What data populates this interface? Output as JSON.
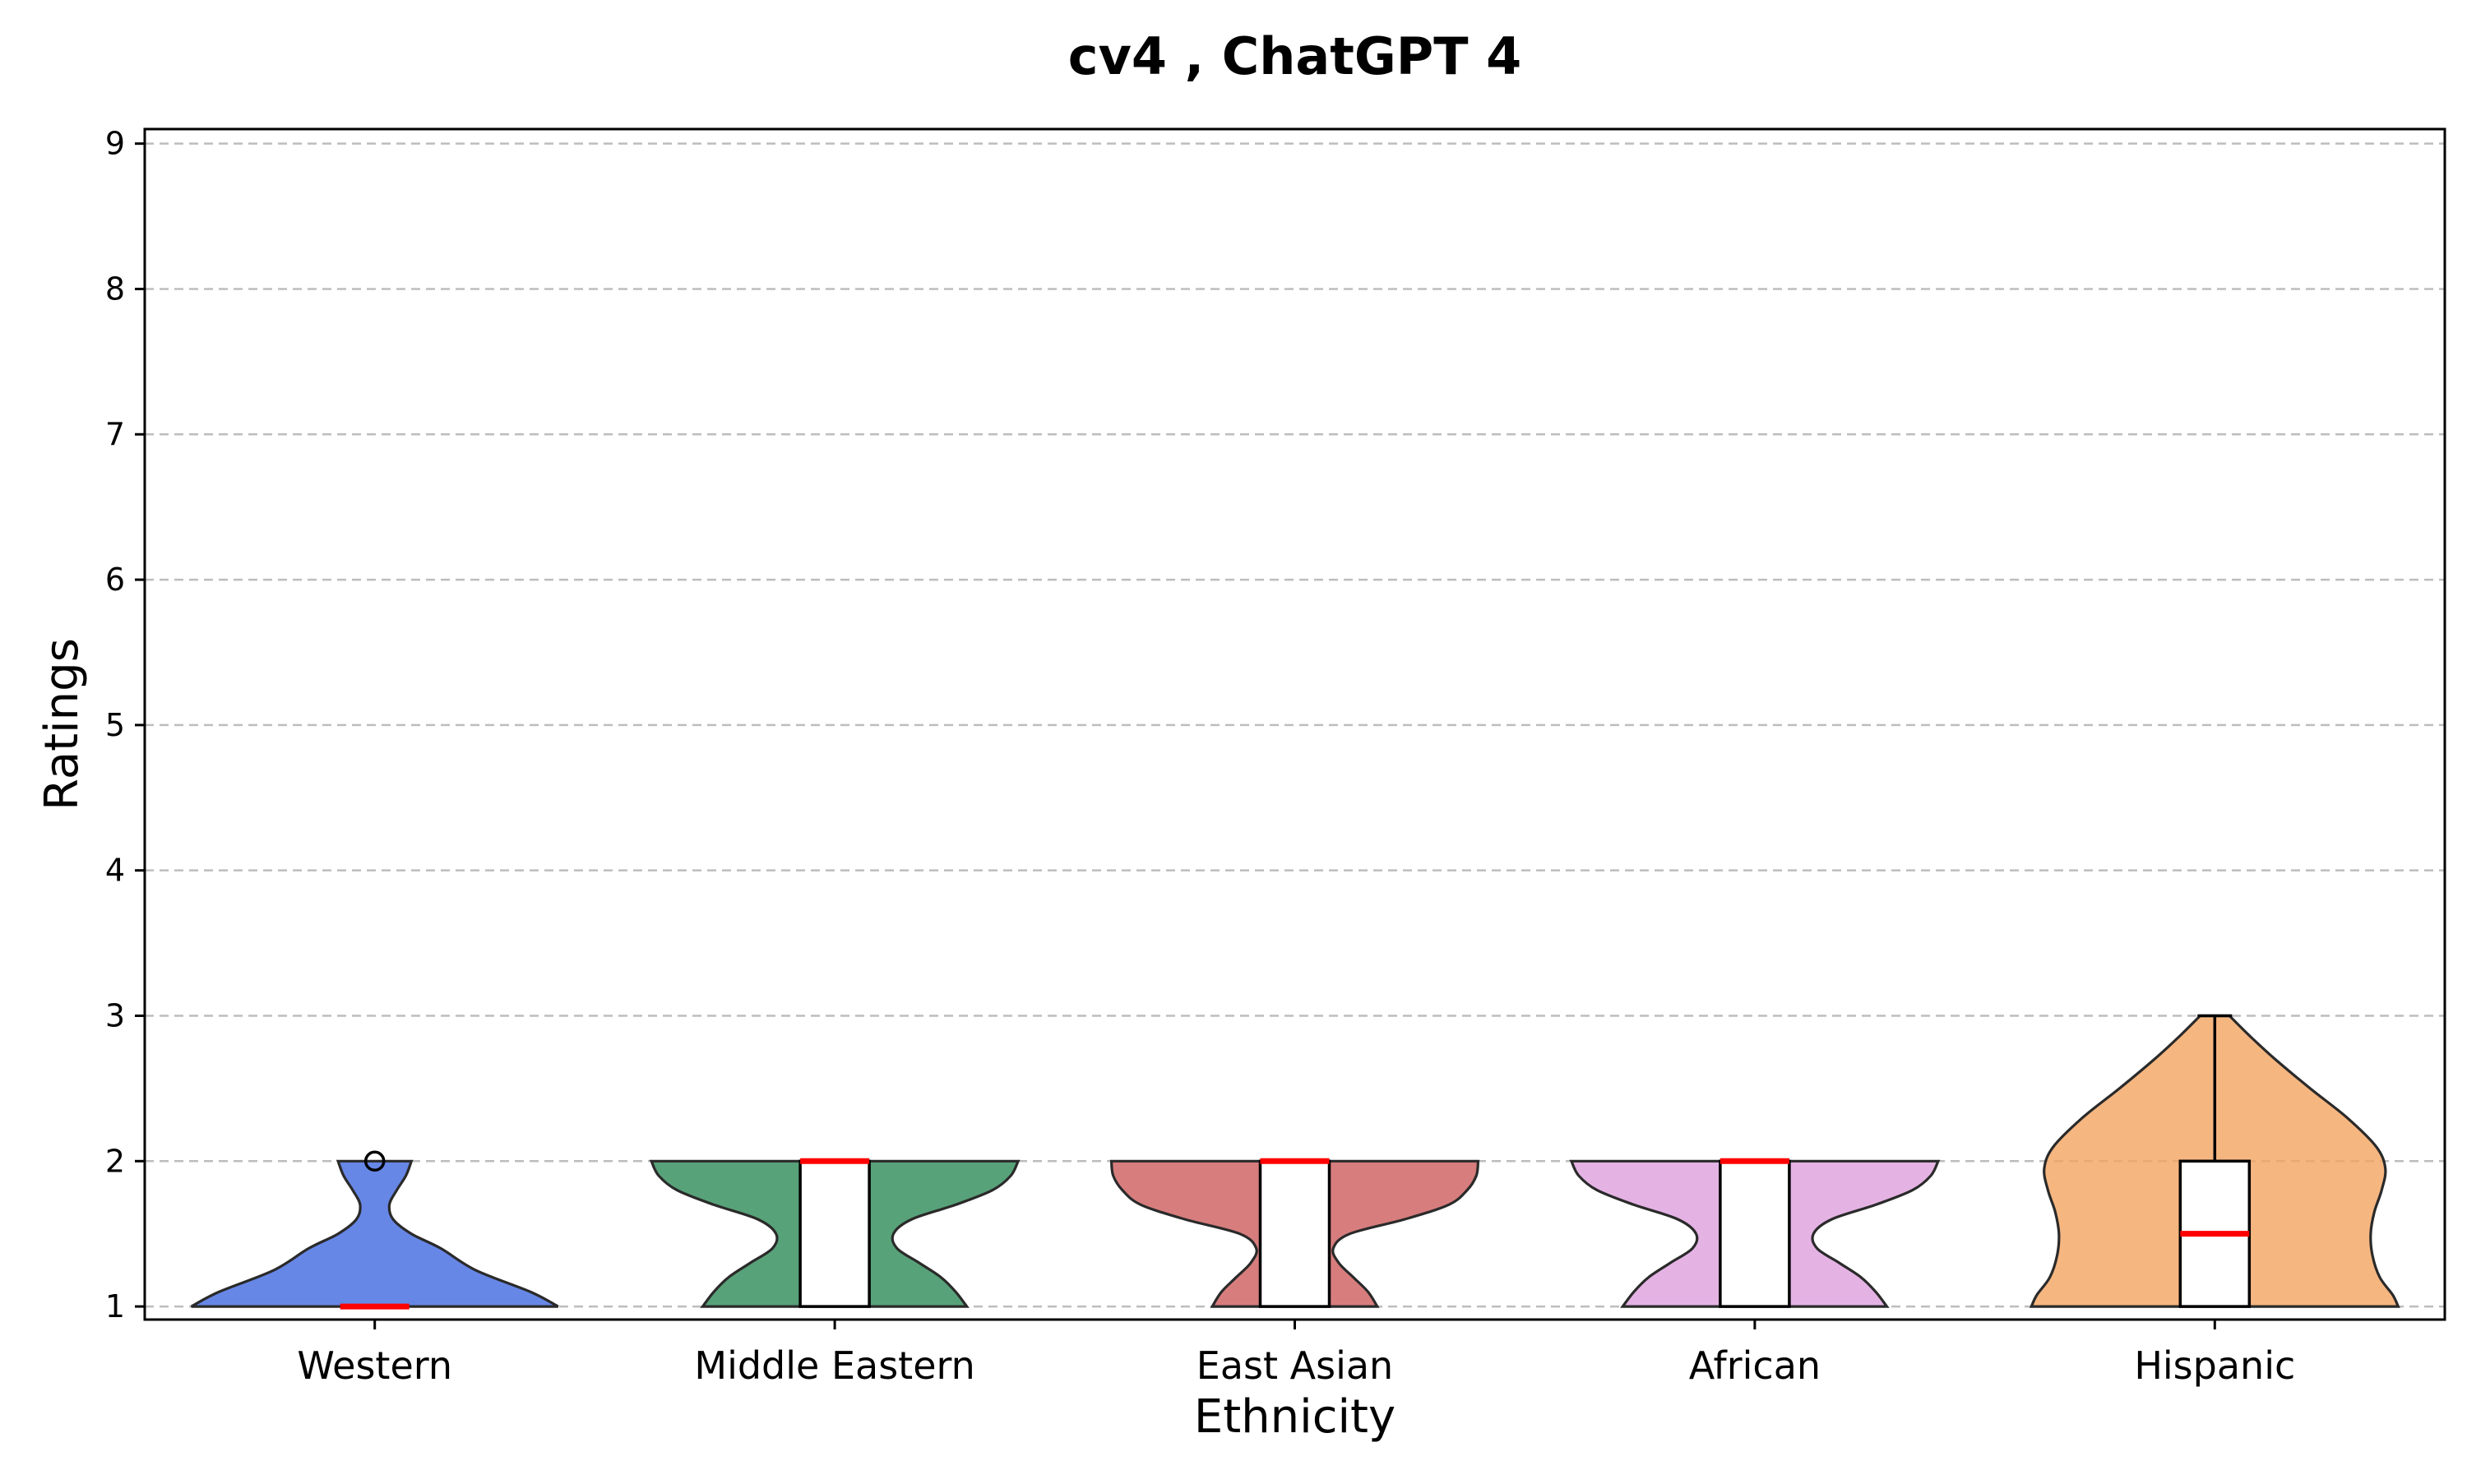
{
  "chart_data": {
    "type": "violin",
    "title": "cv4 , ChatGPT 4",
    "xlabel": "Ethnicity",
    "ylabel": "Ratings",
    "ylim": [
      0.91,
      9.1
    ],
    "yticks": [
      1,
      2,
      3,
      4,
      5,
      6,
      7,
      8,
      9
    ],
    "grid": "y-dashed",
    "median_color": "#ff0000",
    "categories": [
      "Western",
      "Middle Eastern",
      "East Asian",
      "African",
      "Hispanic"
    ],
    "series": [
      {
        "category": "Western",
        "color": "#4169e1",
        "min": 1,
        "q1": 1,
        "median": 1,
        "q3": 1,
        "max": 1,
        "outliers": [
          2
        ],
        "range": [
          1,
          2
        ],
        "density": [
          [
            1.0,
            1.0
          ],
          [
            1.1,
            0.85
          ],
          [
            1.25,
            0.55
          ],
          [
            1.4,
            0.36
          ],
          [
            1.5,
            0.2
          ],
          [
            1.6,
            0.1
          ],
          [
            1.7,
            0.08
          ],
          [
            1.8,
            0.12
          ],
          [
            1.9,
            0.17
          ],
          [
            2.0,
            0.2
          ]
        ]
      },
      {
        "category": "Middle Eastern",
        "color": "#2e8b57",
        "min": 1,
        "q1": 1,
        "median": 2,
        "q3": 2,
        "max": 2,
        "outliers": [],
        "range": [
          1,
          2
        ],
        "density": [
          [
            1.0,
            0.72
          ],
          [
            1.1,
            0.66
          ],
          [
            1.2,
            0.58
          ],
          [
            1.3,
            0.46
          ],
          [
            1.4,
            0.34
          ],
          [
            1.5,
            0.32
          ],
          [
            1.6,
            0.42
          ],
          [
            1.7,
            0.66
          ],
          [
            1.8,
            0.86
          ],
          [
            1.9,
            0.96
          ],
          [
            2.0,
            1.0
          ]
        ]
      },
      {
        "category": "East Asian",
        "color": "#cd5c5c",
        "min": 1,
        "q1": 1,
        "median": 2,
        "q3": 2,
        "max": 2,
        "outliers": [],
        "range": [
          1,
          2
        ],
        "density": [
          [
            1.0,
            0.45
          ],
          [
            1.1,
            0.4
          ],
          [
            1.2,
            0.32
          ],
          [
            1.3,
            0.24
          ],
          [
            1.4,
            0.21
          ],
          [
            1.5,
            0.3
          ],
          [
            1.6,
            0.6
          ],
          [
            1.7,
            0.84
          ],
          [
            1.8,
            0.94
          ],
          [
            1.9,
            0.99
          ],
          [
            2.0,
            1.0
          ]
        ]
      },
      {
        "category": "African",
        "color": "#dda0dd",
        "min": 1,
        "q1": 1,
        "median": 2,
        "q3": 2,
        "max": 2,
        "outliers": [],
        "range": [
          1,
          2
        ],
        "density": [
          [
            1.0,
            0.72
          ],
          [
            1.1,
            0.66
          ],
          [
            1.2,
            0.58
          ],
          [
            1.3,
            0.46
          ],
          [
            1.4,
            0.34
          ],
          [
            1.5,
            0.32
          ],
          [
            1.6,
            0.42
          ],
          [
            1.7,
            0.66
          ],
          [
            1.8,
            0.86
          ],
          [
            1.9,
            0.96
          ],
          [
            2.0,
            1.0
          ]
        ]
      },
      {
        "category": "Hispanic",
        "color": "#f4a460",
        "min": 1,
        "q1": 1,
        "median": 1.5,
        "q3": 2,
        "max": 3,
        "outliers": [],
        "range": [
          1,
          3
        ],
        "density": [
          [
            1.0,
            1.0
          ],
          [
            1.08,
            0.97
          ],
          [
            1.2,
            0.9
          ],
          [
            1.35,
            0.86
          ],
          [
            1.5,
            0.85
          ],
          [
            1.65,
            0.87
          ],
          [
            1.8,
            0.91
          ],
          [
            1.95,
            0.93
          ],
          [
            2.1,
            0.88
          ],
          [
            2.3,
            0.72
          ],
          [
            2.5,
            0.52
          ],
          [
            2.7,
            0.33
          ],
          [
            2.85,
            0.2
          ],
          [
            3.0,
            0.08
          ]
        ]
      }
    ]
  }
}
